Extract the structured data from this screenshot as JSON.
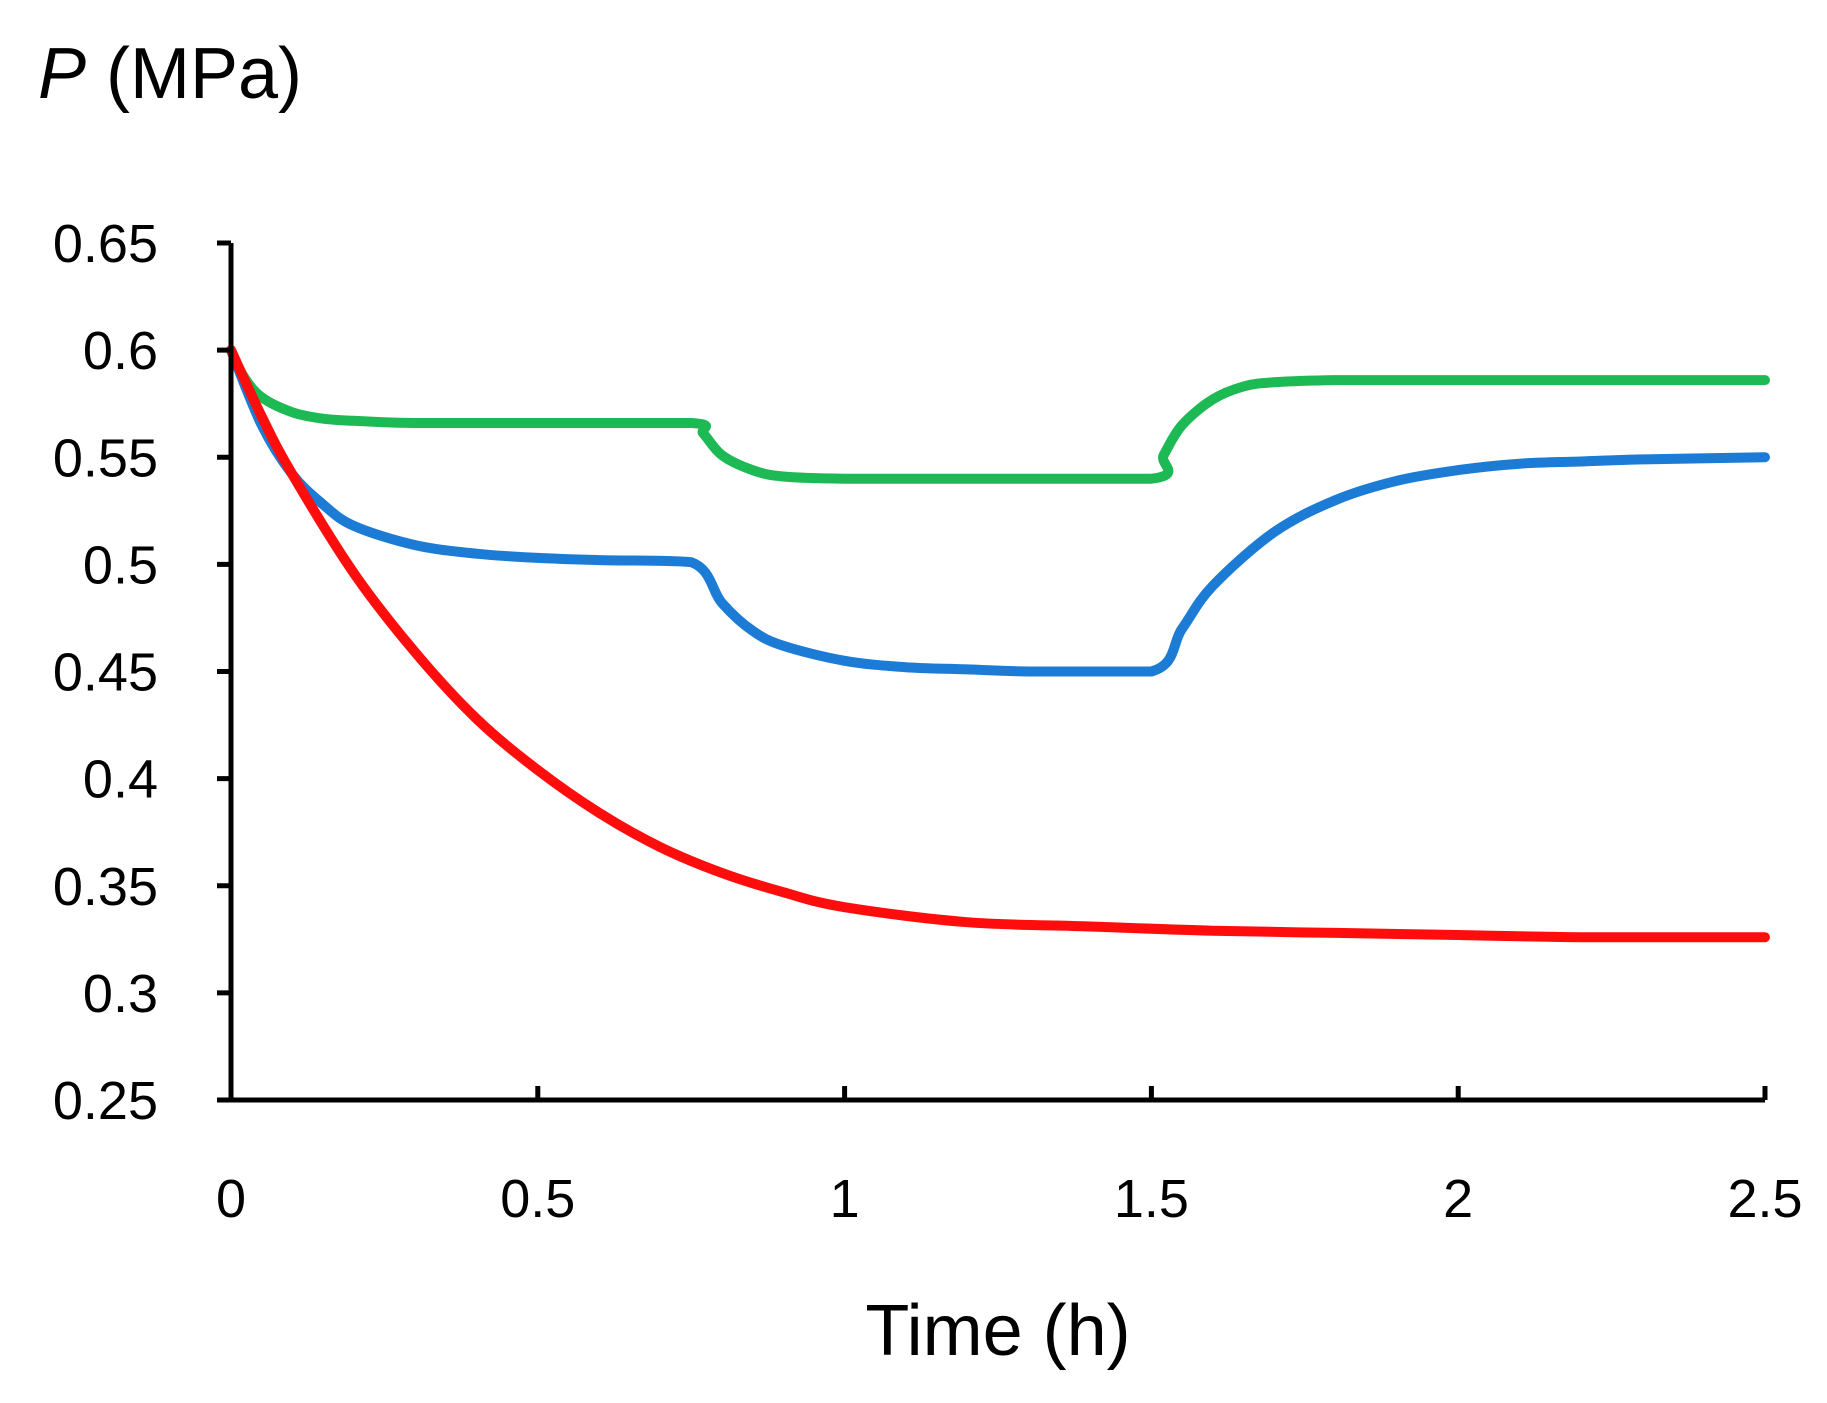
{
  "chart_data": {
    "type": "line",
    "title": "",
    "ylabel_symbol": "P",
    "ylabel_unit": " (MPa)",
    "xlabel": "Time (h)",
    "xlim": [
      0,
      2.5
    ],
    "ylim": [
      0.25,
      0.65
    ],
    "xticks": [
      0,
      0.5,
      1,
      1.5,
      2,
      2.5
    ],
    "xtick_labels": [
      "0",
      "0.5",
      "1",
      "1.5",
      "2",
      "2.5"
    ],
    "yticks": [
      0.25,
      0.3,
      0.35,
      0.4,
      0.45,
      0.5,
      0.55,
      0.6,
      0.65
    ],
    "ytick_labels": [
      "0.25",
      "0.3",
      "0.35",
      "0.4",
      "0.45",
      "0.5",
      "0.55",
      "0.6",
      "0.65"
    ],
    "grid": false,
    "legend": "none",
    "series": [
      {
        "name": "green",
        "color": "#1db954",
        "x": [
          0,
          0.02,
          0.05,
          0.1,
          0.15,
          0.2,
          0.3,
          0.5,
          0.75,
          0.77,
          0.8,
          0.85,
          0.9,
          1.0,
          1.2,
          1.5,
          1.52,
          1.55,
          1.6,
          1.65,
          1.7,
          1.8,
          2.0,
          2.5
        ],
        "y": [
          0.6,
          0.588,
          0.578,
          0.571,
          0.568,
          0.567,
          0.566,
          0.566,
          0.566,
          0.561,
          0.551,
          0.544,
          0.541,
          0.54,
          0.54,
          0.54,
          0.551,
          0.565,
          0.577,
          0.583,
          0.585,
          0.586,
          0.586,
          0.586
        ]
      },
      {
        "name": "blue",
        "color": "#1c7cd5",
        "x": [
          0,
          0.05,
          0.1,
          0.15,
          0.2,
          0.3,
          0.4,
          0.5,
          0.6,
          0.75,
          0.8,
          0.85,
          0.9,
          1.0,
          1.1,
          1.2,
          1.3,
          1.5,
          1.55,
          1.6,
          1.7,
          1.8,
          1.9,
          2.0,
          2.1,
          2.2,
          2.3,
          2.5
        ],
        "y": [
          0.6,
          0.565,
          0.542,
          0.528,
          0.518,
          0.509,
          0.505,
          0.503,
          0.502,
          0.501,
          0.482,
          0.469,
          0.462,
          0.455,
          0.452,
          0.451,
          0.45,
          0.45,
          0.47,
          0.49,
          0.515,
          0.53,
          0.539,
          0.544,
          0.547,
          0.548,
          0.549,
          0.55
        ]
      },
      {
        "name": "red",
        "color": "#ff0d0d",
        "x": [
          0,
          0.05,
          0.1,
          0.2,
          0.3,
          0.4,
          0.5,
          0.6,
          0.7,
          0.8,
          0.9,
          1.0,
          1.2,
          1.4,
          1.6,
          1.8,
          2.0,
          2.2,
          2.5
        ],
        "y": [
          0.6,
          0.569,
          0.542,
          0.496,
          0.459,
          0.428,
          0.404,
          0.384,
          0.368,
          0.356,
          0.347,
          0.34,
          0.333,
          0.331,
          0.329,
          0.328,
          0.327,
          0.326,
          0.326
        ]
      }
    ]
  }
}
